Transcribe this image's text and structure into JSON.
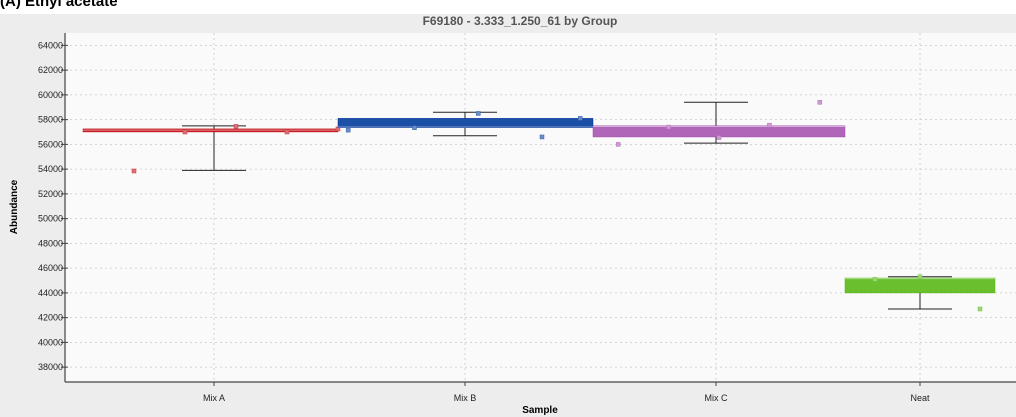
{
  "panel": {
    "heading": "(A) Ethyl acetate"
  },
  "colors": {
    "mix_a": "#c8232c",
    "mix_b": "#1c4fa6",
    "mix_c": "#b065b8",
    "neat": "#6abf2e"
  },
  "chart_data": {
    "type": "box",
    "title": "F69180 - 3.333_1.250_61 by Group",
    "xlabel": "Sample",
    "ylabel": "Abundance",
    "ylim": [
      36800,
      65000
    ],
    "yticks": [
      38000,
      40000,
      42000,
      44000,
      46000,
      48000,
      50000,
      52000,
      54000,
      56000,
      58000,
      60000,
      62000,
      64000
    ],
    "ytick_labels": [
      "38000",
      "40000",
      "42000",
      "44000",
      "46000",
      "48000",
      "50000",
      "52000",
      "54000",
      "56000",
      "58000",
      "60000",
      "62000",
      "64000"
    ],
    "categories": [
      "Mix A",
      "Mix B",
      "Mix C",
      "Neat"
    ],
    "grid": true,
    "groups": [
      {
        "category": "Mix A",
        "color": "#c8232c",
        "box": [
          57100,
          57250
        ],
        "median": 57150,
        "whisker": [
          53900,
          57500
        ],
        "points": [
          [
            0.2,
            53850
          ],
          [
            0.4,
            57000
          ],
          [
            0.6,
            57450
          ],
          [
            0.8,
            57000
          ],
          [
            1.0,
            57250
          ]
        ]
      },
      {
        "category": "Mix B",
        "color": "#1c4fa6",
        "box": [
          57350,
          58100
        ],
        "median": 57400,
        "whisker": [
          56700,
          58600
        ],
        "points": [
          [
            0.04,
            57150
          ],
          [
            0.3,
            57350
          ],
          [
            0.55,
            58500
          ],
          [
            0.8,
            56600
          ],
          [
            0.95,
            58100
          ]
        ]
      },
      {
        "category": "Mix C",
        "color": "#b065b8",
        "box": [
          56600,
          57500
        ],
        "median": 57450,
        "whisker": [
          56100,
          59400
        ],
        "points": [
          [
            0.1,
            56000
          ],
          [
            0.3,
            57400
          ],
          [
            0.5,
            56550
          ],
          [
            0.7,
            57550
          ],
          [
            0.9,
            59400
          ]
        ]
      },
      {
        "category": "Neat",
        "color": "#6abf2e",
        "box": [
          44000,
          45200
        ],
        "median": 45150,
        "whisker": [
          42700,
          45300
        ],
        "points": [
          [
            0.2,
            45100
          ],
          [
            0.5,
            45300
          ],
          [
            0.9,
            42700
          ]
        ]
      }
    ]
  }
}
